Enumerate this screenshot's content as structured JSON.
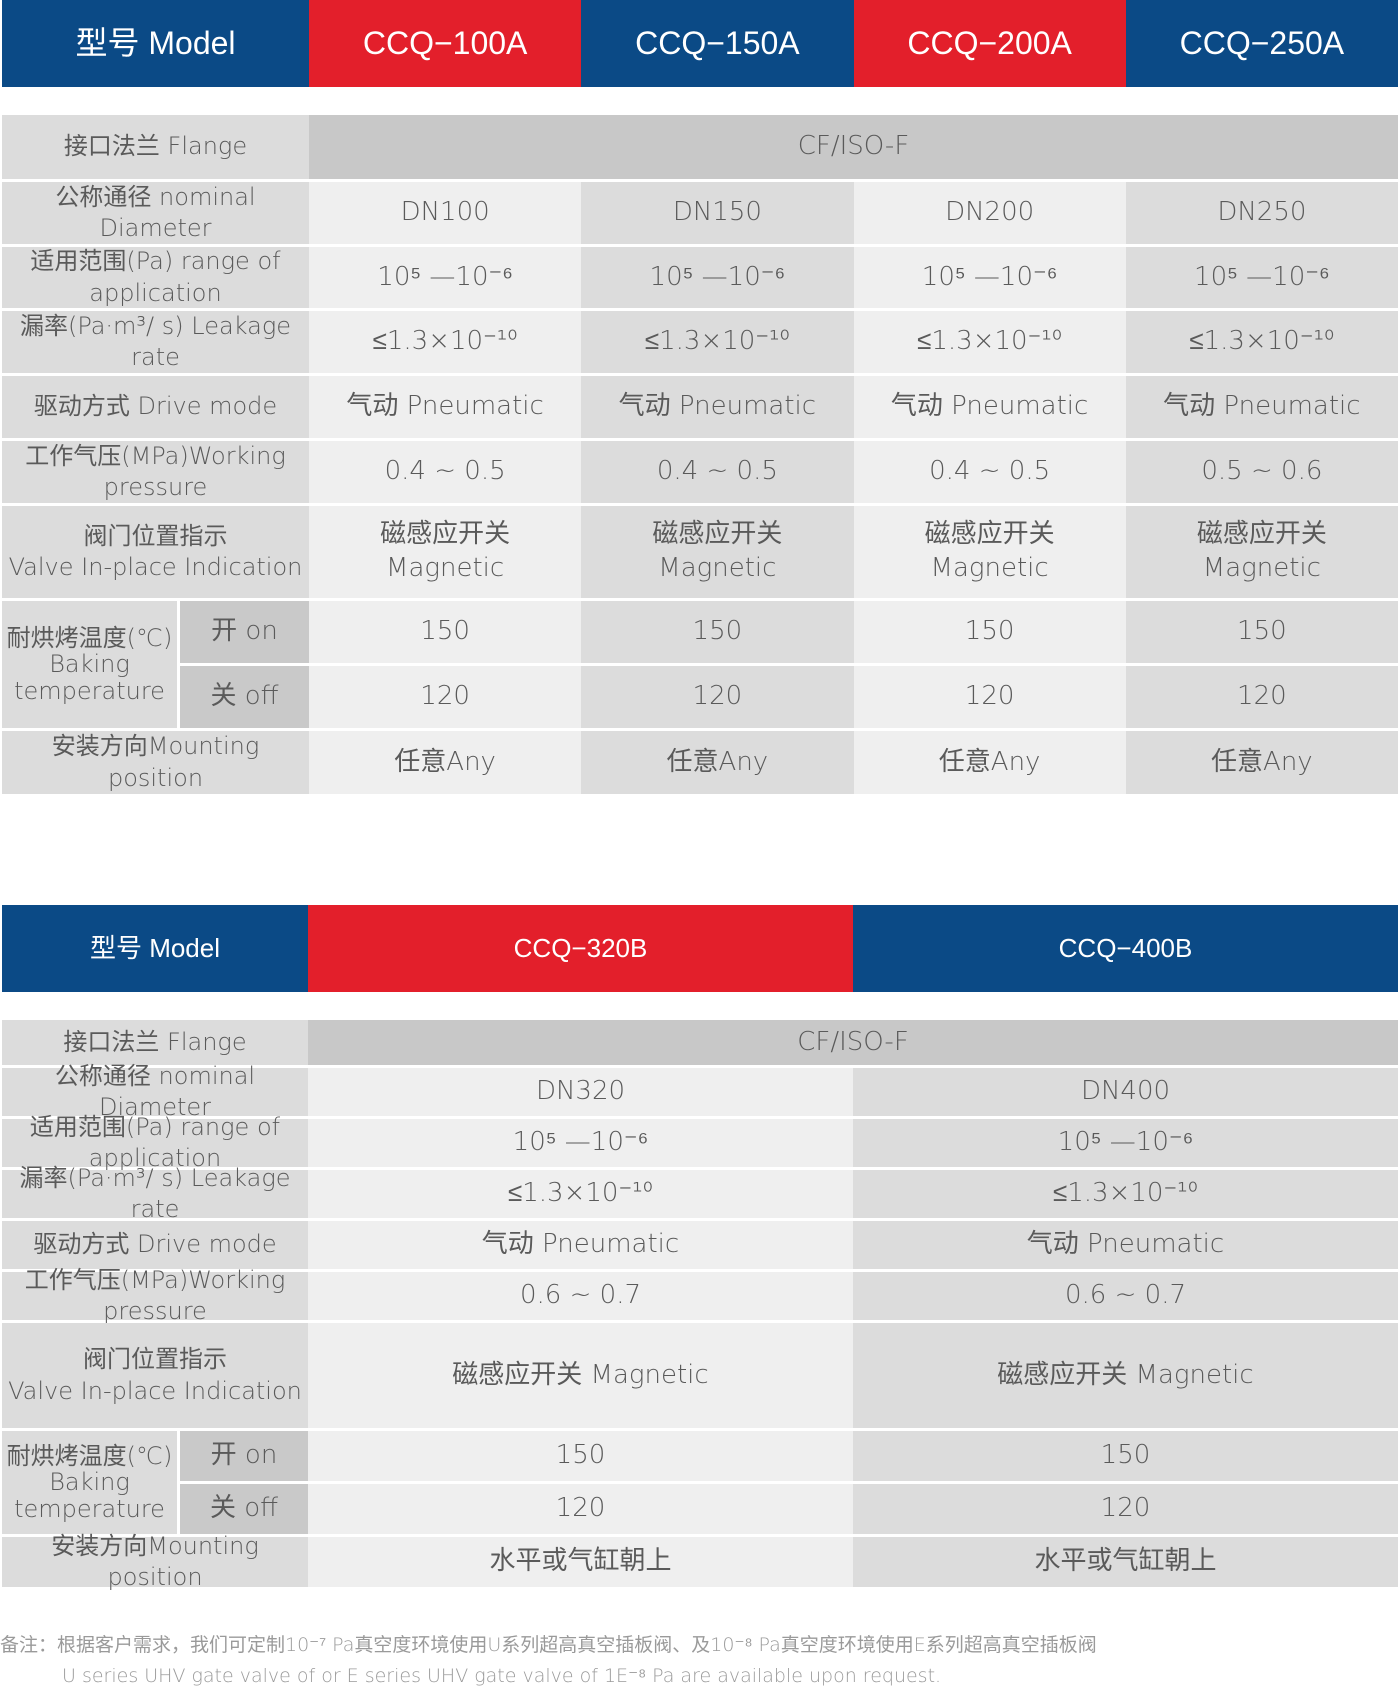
{
  "colors": {
    "navy": "#0b4a86",
    "red": "#e31f2b",
    "label_gray": "#dcdcdc",
    "light_gray": "#efefef"
  },
  "labels": {
    "model": "型号 Model",
    "flange": "接口法兰 Flange",
    "diameter": "公称通径 nominal Diameter",
    "range": "适用范围(Pa) range of application",
    "leakage": "漏率(Pa·m³/ s) Leakage rate",
    "drive": "驱动方式 Drive mode",
    "pressure": "工作气压(MPa)Working pressure",
    "indication": "阀门位置指示\nValve In-place Indication",
    "baking": "耐烘烤温度(℃)\nBaking\ntemperature",
    "baking_on": "开 on",
    "baking_off": "关 off",
    "mounting": "安装方向Mounting position"
  },
  "table1": {
    "flange": "CF/ISO-F",
    "models": [
      {
        "name": "CCQ−100A",
        "header_color": "red",
        "diameter": "DN100",
        "range": "10⁵ —10⁻⁶",
        "leakage": "≤1.3×10⁻¹⁰",
        "drive": "气动 Pneumatic",
        "pressure": "0.4 ~ 0.5",
        "indication": "磁感应开关\nMagnetic",
        "baking_on": "150",
        "baking_off": "120",
        "mounting": "任意Any"
      },
      {
        "name": "CCQ−150A",
        "header_color": "navy",
        "diameter": "DN150",
        "range": "10⁵ —10⁻⁶",
        "leakage": "≤1.3×10⁻¹⁰",
        "drive": "气动 Pneumatic",
        "pressure": "0.4 ~ 0.5",
        "indication": "磁感应开关\nMagnetic",
        "baking_on": "150",
        "baking_off": "120",
        "mounting": "任意Any"
      },
      {
        "name": "CCQ−200A",
        "header_color": "red",
        "diameter": "DN200",
        "range": "10⁵ —10⁻⁶",
        "leakage": "≤1.3×10⁻¹⁰",
        "drive": "气动 Pneumatic",
        "pressure": "0.4 ~ 0.5",
        "indication": "磁感应开关\nMagnetic",
        "baking_on": "150",
        "baking_off": "120",
        "mounting": "任意Any"
      },
      {
        "name": "CCQ−250A",
        "header_color": "navy",
        "diameter": "DN250",
        "range": "10⁵ —10⁻⁶",
        "leakage": "≤1.3×10⁻¹⁰",
        "drive": "气动 Pneumatic",
        "pressure": "0.5 ~ 0.6",
        "indication": "磁感应开关\nMagnetic",
        "baking_on": "150",
        "baking_off": "120",
        "mounting": "任意Any"
      }
    ]
  },
  "table2": {
    "flange": "CF/ISO-F",
    "models": [
      {
        "name": "CCQ−320B",
        "header_color": "red",
        "diameter": "DN320",
        "range": "10⁵ —10⁻⁶",
        "leakage": "≤1.3×10⁻¹⁰",
        "drive": "气动 Pneumatic",
        "pressure": "0.6 ~ 0.7",
        "indication": "磁感应开关 Magnetic",
        "baking_on": "150",
        "baking_off": "120",
        "mounting": "水平或气缸朝上"
      },
      {
        "name": "CCQ−400B",
        "header_color": "navy",
        "diameter": "DN400",
        "range": "10⁵ —10⁻⁶",
        "leakage": "≤1.3×10⁻¹⁰",
        "drive": "气动 Pneumatic",
        "pressure": "0.6 ~ 0.7",
        "indication": "磁感应开关 Magnetic",
        "baking_on": "150",
        "baking_off": "120",
        "mounting": "水平或气缸朝上"
      }
    ]
  },
  "footnote": {
    "line1": "备注：根据客户需求，我们可定制10⁻⁷ Pa真空度环境使用U系列超高真空插板阀、及10⁻⁸ Pa真空度环境使用E系列超高真空插板阀",
    "line2": "U series UHV gate valve of or E series UHV gate valve of 1E⁻⁸ Pa are available upon request."
  }
}
